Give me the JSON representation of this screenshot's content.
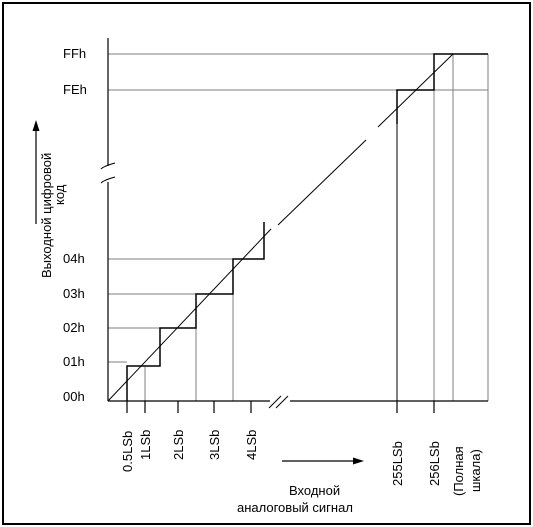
{
  "diagram": {
    "y_axis_label_line1": "Выходной цифровой",
    "y_axis_label_line2": "код",
    "x_axis_label_line1": "Входной",
    "x_axis_label_line2": "аналоговый сигнал",
    "y_ticks": [
      "FFh",
      "FEh",
      "04h",
      "03h",
      "02h",
      "01h",
      "00h"
    ],
    "x_ticks": [
      "0.5LSb",
      "1LSb",
      "2LSb",
      "3LSb",
      "4LSb",
      "255LSb",
      "256LSb"
    ],
    "full_scale_label_line1": "(Полная",
    "full_scale_label_line2": "шкала)",
    "colors": {
      "line": "#000000",
      "grid": "#7f7f7f",
      "background": "#ffffff"
    }
  }
}
